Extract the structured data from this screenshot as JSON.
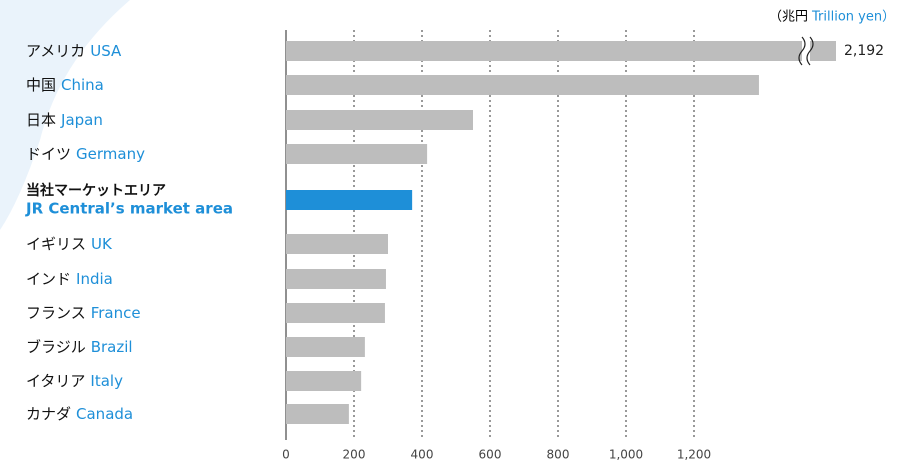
{
  "chart_data": {
    "type": "bar",
    "orientation": "horizontal",
    "unit_ja": "（兆円",
    "unit_en": "Trillion yen）",
    "categories": [
      "アメリカ",
      "中国",
      "日本",
      "ドイツ",
      "当社マーケットエリア",
      "イギリス",
      "インド",
      "フランス",
      "ブラジル",
      "イタリア",
      "カナダ"
    ],
    "categories_en": [
      "USA",
      "China",
      "Japan",
      "Germany",
      "JR Central’s market area",
      "UK",
      "India",
      "France",
      "Brazil",
      "Italy",
      "Canada"
    ],
    "values": [
      2192,
      1391,
      550,
      415,
      371,
      300,
      294,
      291,
      232,
      221,
      185
    ],
    "value_labels": [
      "2,192",
      null,
      null,
      null,
      null,
      null,
      null,
      null,
      null,
      null,
      null
    ],
    "colors": [
      "#bdbdbd",
      "#bdbdbd",
      "#bdbdbd",
      "#bdbdbd",
      "#1e8fd8",
      "#bdbdbd",
      "#bdbdbd",
      "#bdbdbd",
      "#bdbdbd",
      "#bdbdbd",
      "#bdbdbd"
    ],
    "xlim": [
      0,
      1600
    ],
    "xticks": [
      0,
      200,
      400,
      600,
      800,
      {
        "value": 1000,
        "label": "1,000"
      },
      {
        "value": 1200,
        "label": "1,200"
      }
    ],
    "grid": true
  }
}
